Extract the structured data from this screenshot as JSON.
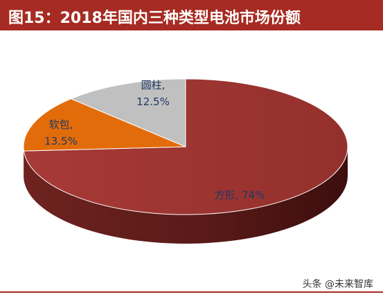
{
  "title": "图15：2018年国内三种类型电池市场份额",
  "watermark": "头条 @未来智库",
  "chart_data": {
    "type": "pie",
    "style": "3d",
    "title": "",
    "slices": [
      {
        "name": "方形",
        "value": 74,
        "label": "方形, 74%",
        "color": "#9c3632"
      },
      {
        "name": "软包",
        "value": 13.5,
        "label_line1": "软包,",
        "label_line2": "13.5%",
        "color": "#e36c0a"
      },
      {
        "name": "圆柱",
        "value": 12.5,
        "label_line1": "圆柱,",
        "label_line2": "12.5%",
        "color": "#c0c0c0"
      }
    ]
  },
  "colors": {
    "accent": "#a62b22",
    "label": "#1f3864"
  }
}
